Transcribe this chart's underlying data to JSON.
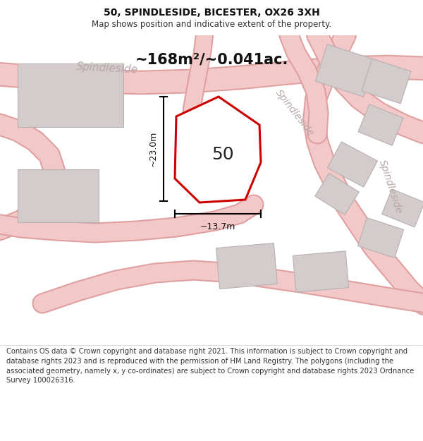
{
  "title": "50, SPINDLESIDE, BICESTER, OX26 3XH",
  "subtitle": "Map shows position and indicative extent of the property.",
  "area_label": "~168m²/~0.041ac.",
  "plot_number": "50",
  "dim_width": "~13.7m",
  "dim_height": "~23.0m",
  "footer": "Contains OS data © Crown copyright and database right 2021. This information is subject to Crown copyright and database rights 2023 and is reproduced with the permission of HM Land Registry. The polygons (including the associated geometry, namely x, y co-ordinates) are subject to Crown copyright and database rights 2023 Ordnance Survey 100026316.",
  "bg_color": "#faf7f7",
  "road_fill": "#f2c8c8",
  "road_edge": "#e0a0a0",
  "building_fill": "#d4cccc",
  "building_edge": "#b8b0b0",
  "plot_fill": "#ffffff",
  "plot_edge": "#cc0000",
  "street_label_color": "#b8a8a8",
  "title_fontsize": 10,
  "subtitle_fontsize": 8.5,
  "area_label_fontsize": 15,
  "plot_number_fontsize": 18,
  "dim_fontsize": 9,
  "footer_fontsize": 7.2,
  "street_fontsize": 11
}
